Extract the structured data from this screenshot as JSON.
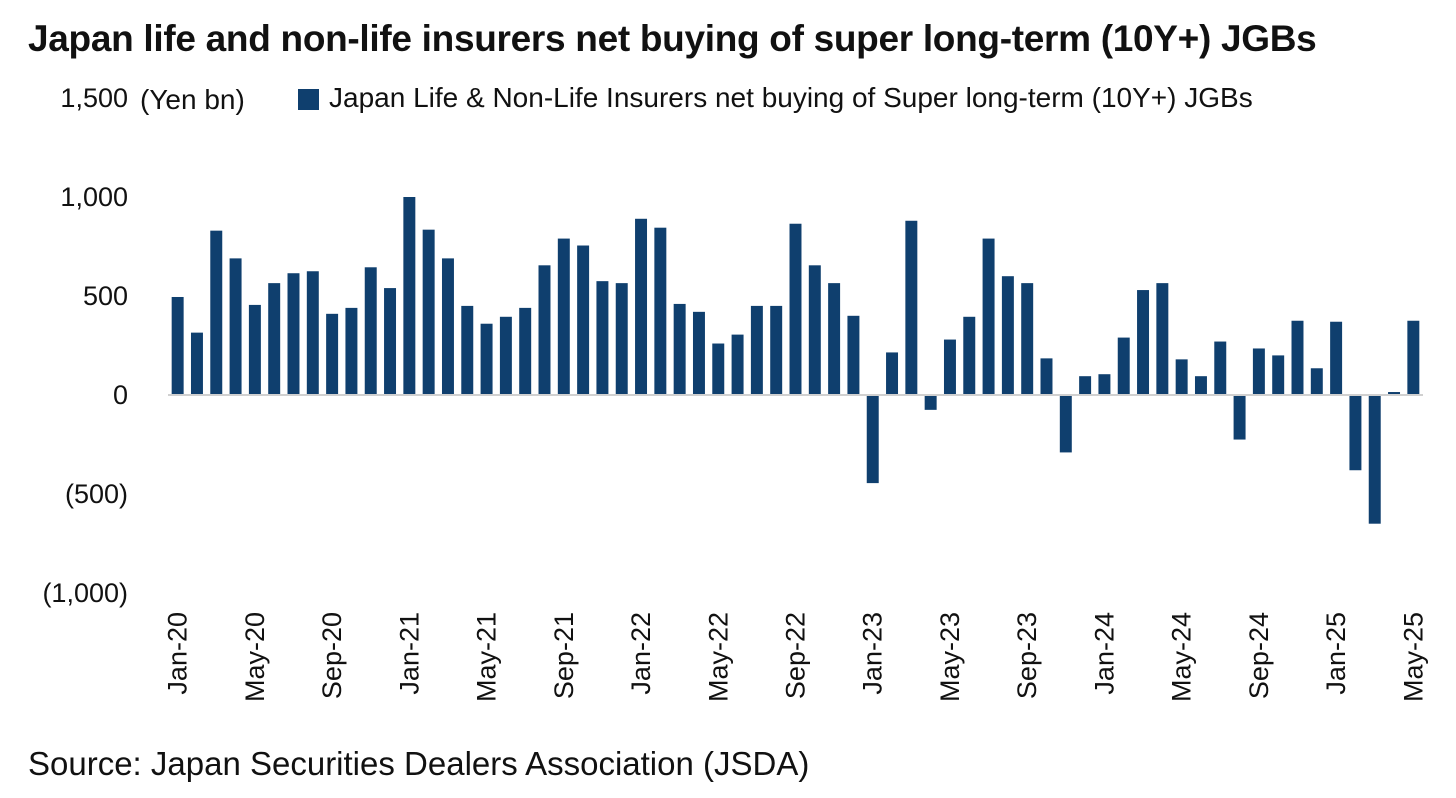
{
  "chart_data": {
    "type": "bar",
    "title": "Japan life and non-life insurers net buying of super long-term (10Y+) JGBs",
    "ylabel": "(Yen bn)",
    "series_name": "Japan Life & Non-Life Insurers net buying of Super long-term (10Y+) JGBs",
    "source": "Source: Japan Securities Dealers Association (JSDA)",
    "ylim": [
      -1000,
      1500
    ],
    "yticks": [
      {
        "value": 1500,
        "label": "1,500"
      },
      {
        "value": 1000,
        "label": "1,000"
      },
      {
        "value": 500,
        "label": "500"
      },
      {
        "value": 0,
        "label": "0"
      },
      {
        "value": -500,
        "label": "(500)"
      },
      {
        "value": -1000,
        "label": "(1,000)"
      }
    ],
    "xtick_labels": [
      "Jan-20",
      "May-20",
      "Sep-20",
      "Jan-21",
      "May-21",
      "Sep-21",
      "Jan-22",
      "May-22",
      "Sep-22",
      "Jan-23",
      "May-23",
      "Sep-23",
      "Jan-24",
      "May-24",
      "Sep-24",
      "Jan-25",
      "May-25"
    ],
    "xtick_every": 4,
    "bar_color": "#0f3f6e",
    "categories": [
      "Jan-20",
      "Feb-20",
      "Mar-20",
      "Apr-20",
      "May-20",
      "Jun-20",
      "Jul-20",
      "Aug-20",
      "Sep-20",
      "Oct-20",
      "Nov-20",
      "Dec-20",
      "Jan-21",
      "Feb-21",
      "Mar-21",
      "Apr-21",
      "May-21",
      "Jun-21",
      "Jul-21",
      "Aug-21",
      "Sep-21",
      "Oct-21",
      "Nov-21",
      "Dec-21",
      "Jan-22",
      "Feb-22",
      "Mar-22",
      "Apr-22",
      "May-22",
      "Jun-22",
      "Jul-22",
      "Aug-22",
      "Sep-22",
      "Oct-22",
      "Nov-22",
      "Dec-22",
      "Jan-23",
      "Feb-23",
      "Mar-23",
      "Apr-23",
      "May-23",
      "Jun-23",
      "Jul-23",
      "Aug-23",
      "Sep-23",
      "Oct-23",
      "Nov-23",
      "Dec-23",
      "Jan-24",
      "Feb-24",
      "Mar-24",
      "Apr-24",
      "May-24",
      "Jun-24",
      "Jul-24",
      "Aug-24",
      "Sep-24",
      "Oct-24",
      "Nov-24",
      "Dec-24",
      "Jan-25",
      "Feb-25",
      "Mar-25",
      "Apr-25",
      "May-25"
    ],
    "values": [
      495,
      315,
      830,
      690,
      455,
      565,
      615,
      625,
      410,
      440,
      645,
      540,
      1000,
      835,
      690,
      450,
      360,
      395,
      440,
      655,
      790,
      755,
      575,
      565,
      890,
      845,
      460,
      420,
      260,
      305,
      450,
      450,
      865,
      655,
      565,
      400,
      -445,
      215,
      880,
      -75,
      280,
      395,
      790,
      600,
      565,
      185,
      -290,
      95,
      105,
      290,
      530,
      565,
      180,
      95,
      270,
      -225,
      235,
      200,
      375,
      135,
      370,
      -380,
      -650,
      15,
      375
    ]
  }
}
